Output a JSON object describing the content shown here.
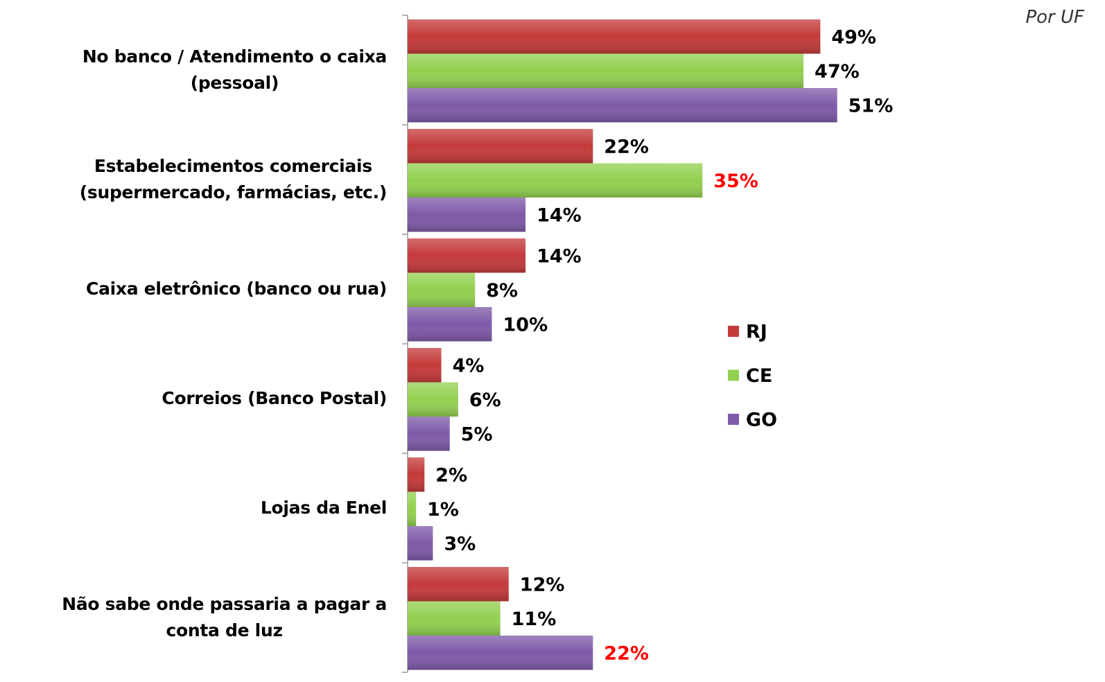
{
  "chart_data": {
    "type": "bar",
    "orientation": "horizontal",
    "subtitle": "Por UF",
    "categories": [
      "No banco / Atendimento o caixa\n(pessoal)",
      "Estabelecimentos comerciais\n(supermercado, farmácias, etc.)",
      "Caixa eletrônico (banco ou rua)",
      "Correios (Banco Postal)",
      "Lojas da Enel",
      "Não sabe onde passaria a pagar a\nconta de luz"
    ],
    "series": [
      {
        "name": "RJ",
        "color": "#c43a3a",
        "values": [
          49,
          22,
          14,
          4,
          2,
          12
        ],
        "value_labels": [
          "49%",
          "22%",
          "14%",
          "4%",
          "2%",
          "12%"
        ],
        "label_colors": [
          "#000000",
          "#000000",
          "#000000",
          "#000000",
          "#000000",
          "#000000"
        ]
      },
      {
        "name": "CE",
        "color": "#92d050",
        "values": [
          47,
          35,
          8,
          6,
          1,
          11
        ],
        "value_labels": [
          "47%",
          "35%",
          "8%",
          "6%",
          "1%",
          "11%"
        ],
        "label_colors": [
          "#000000",
          "#ff0000",
          "#000000",
          "#000000",
          "#000000",
          "#000000"
        ]
      },
      {
        "name": "GO",
        "color": "#7e5aa8",
        "values": [
          51,
          14,
          10,
          5,
          3,
          22
        ],
        "value_labels": [
          "51%",
          "14%",
          "10%",
          "5%",
          "3%",
          "22%"
        ],
        "label_colors": [
          "#000000",
          "#000000",
          "#000000",
          "#000000",
          "#000000",
          "#ff0000"
        ]
      }
    ],
    "legend": "right"
  }
}
